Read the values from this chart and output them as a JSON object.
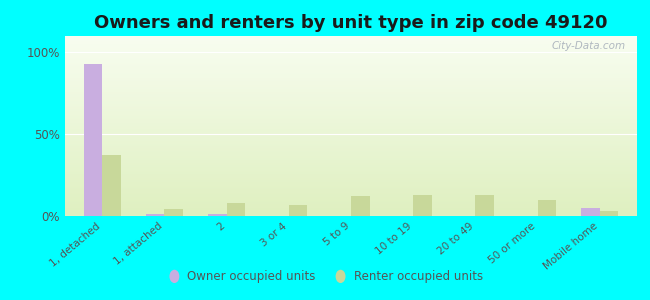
{
  "title": "Owners and renters by unit type in zip code 49120",
  "categories": [
    "1, detached",
    "1, attached",
    "2",
    "3 or 4",
    "5 to 9",
    "10 to 19",
    "20 to 49",
    "50 or more",
    "Mobile home"
  ],
  "owner_values": [
    93,
    1,
    1,
    0,
    0,
    0,
    0,
    0,
    5
  ],
  "renter_values": [
    37,
    4,
    8,
    7,
    12,
    13,
    13,
    10,
    3
  ],
  "owner_color": "#c9aee0",
  "renter_color": "#c8d89a",
  "background_color": "#00ffff",
  "grad_top": "#f5fce8",
  "grad_bottom": "#dff0c8",
  "yticks": [
    0,
    50,
    100
  ],
  "ylim": [
    0,
    110
  ],
  "watermark": "City-Data.com",
  "legend_owner": "Owner occupied units",
  "legend_renter": "Renter occupied units",
  "title_fontsize": 13,
  "bar_width": 0.3
}
